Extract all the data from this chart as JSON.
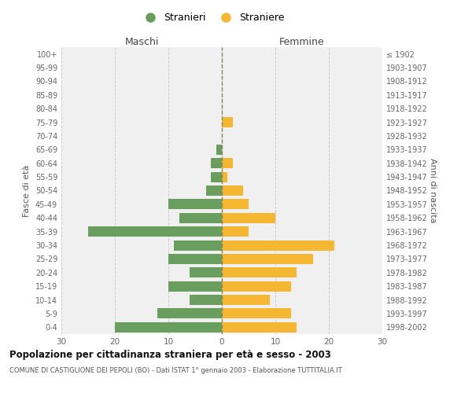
{
  "age_groups": [
    "100+",
    "95-99",
    "90-94",
    "85-89",
    "80-84",
    "75-79",
    "70-74",
    "65-69",
    "60-64",
    "55-59",
    "50-54",
    "45-49",
    "40-44",
    "35-39",
    "30-34",
    "25-29",
    "20-24",
    "15-19",
    "10-14",
    "5-9",
    "0-4"
  ],
  "birth_years": [
    "≤ 1902",
    "1903-1907",
    "1908-1912",
    "1913-1917",
    "1918-1922",
    "1923-1927",
    "1928-1932",
    "1933-1937",
    "1938-1942",
    "1943-1947",
    "1948-1952",
    "1953-1957",
    "1958-1962",
    "1963-1967",
    "1968-1972",
    "1973-1977",
    "1978-1982",
    "1983-1987",
    "1988-1992",
    "1993-1997",
    "1998-2002"
  ],
  "males": [
    0,
    0,
    0,
    0,
    0,
    0,
    0,
    1,
    2,
    2,
    3,
    10,
    8,
    25,
    9,
    10,
    6,
    10,
    6,
    12,
    20
  ],
  "females": [
    0,
    0,
    0,
    0,
    0,
    2,
    0,
    0,
    2,
    1,
    4,
    5,
    10,
    5,
    21,
    17,
    14,
    13,
    9,
    13,
    14
  ],
  "male_color": "#6a9e5e",
  "female_color": "#f5b731",
  "background_color": "#f0f0f0",
  "grid_color": "#cccccc",
  "zero_line_color": "#888855",
  "title": "Popolazione per cittadinanza straniera per età e sesso - 2003",
  "subtitle": "COMUNE DI CASTIGLIONE DEI PEPOLI (BO) - Dati ISTAT 1° gennaio 2003 - Elaborazione TUTTITALIA.IT",
  "legend_stranieri": "Stranieri",
  "legend_straniere": "Straniere",
  "xlabel_left": "Maschi",
  "xlabel_right": "Femmine",
  "ylabel_left": "Fasce di età",
  "ylabel_right": "Anni di nascita",
  "xlim": 30
}
